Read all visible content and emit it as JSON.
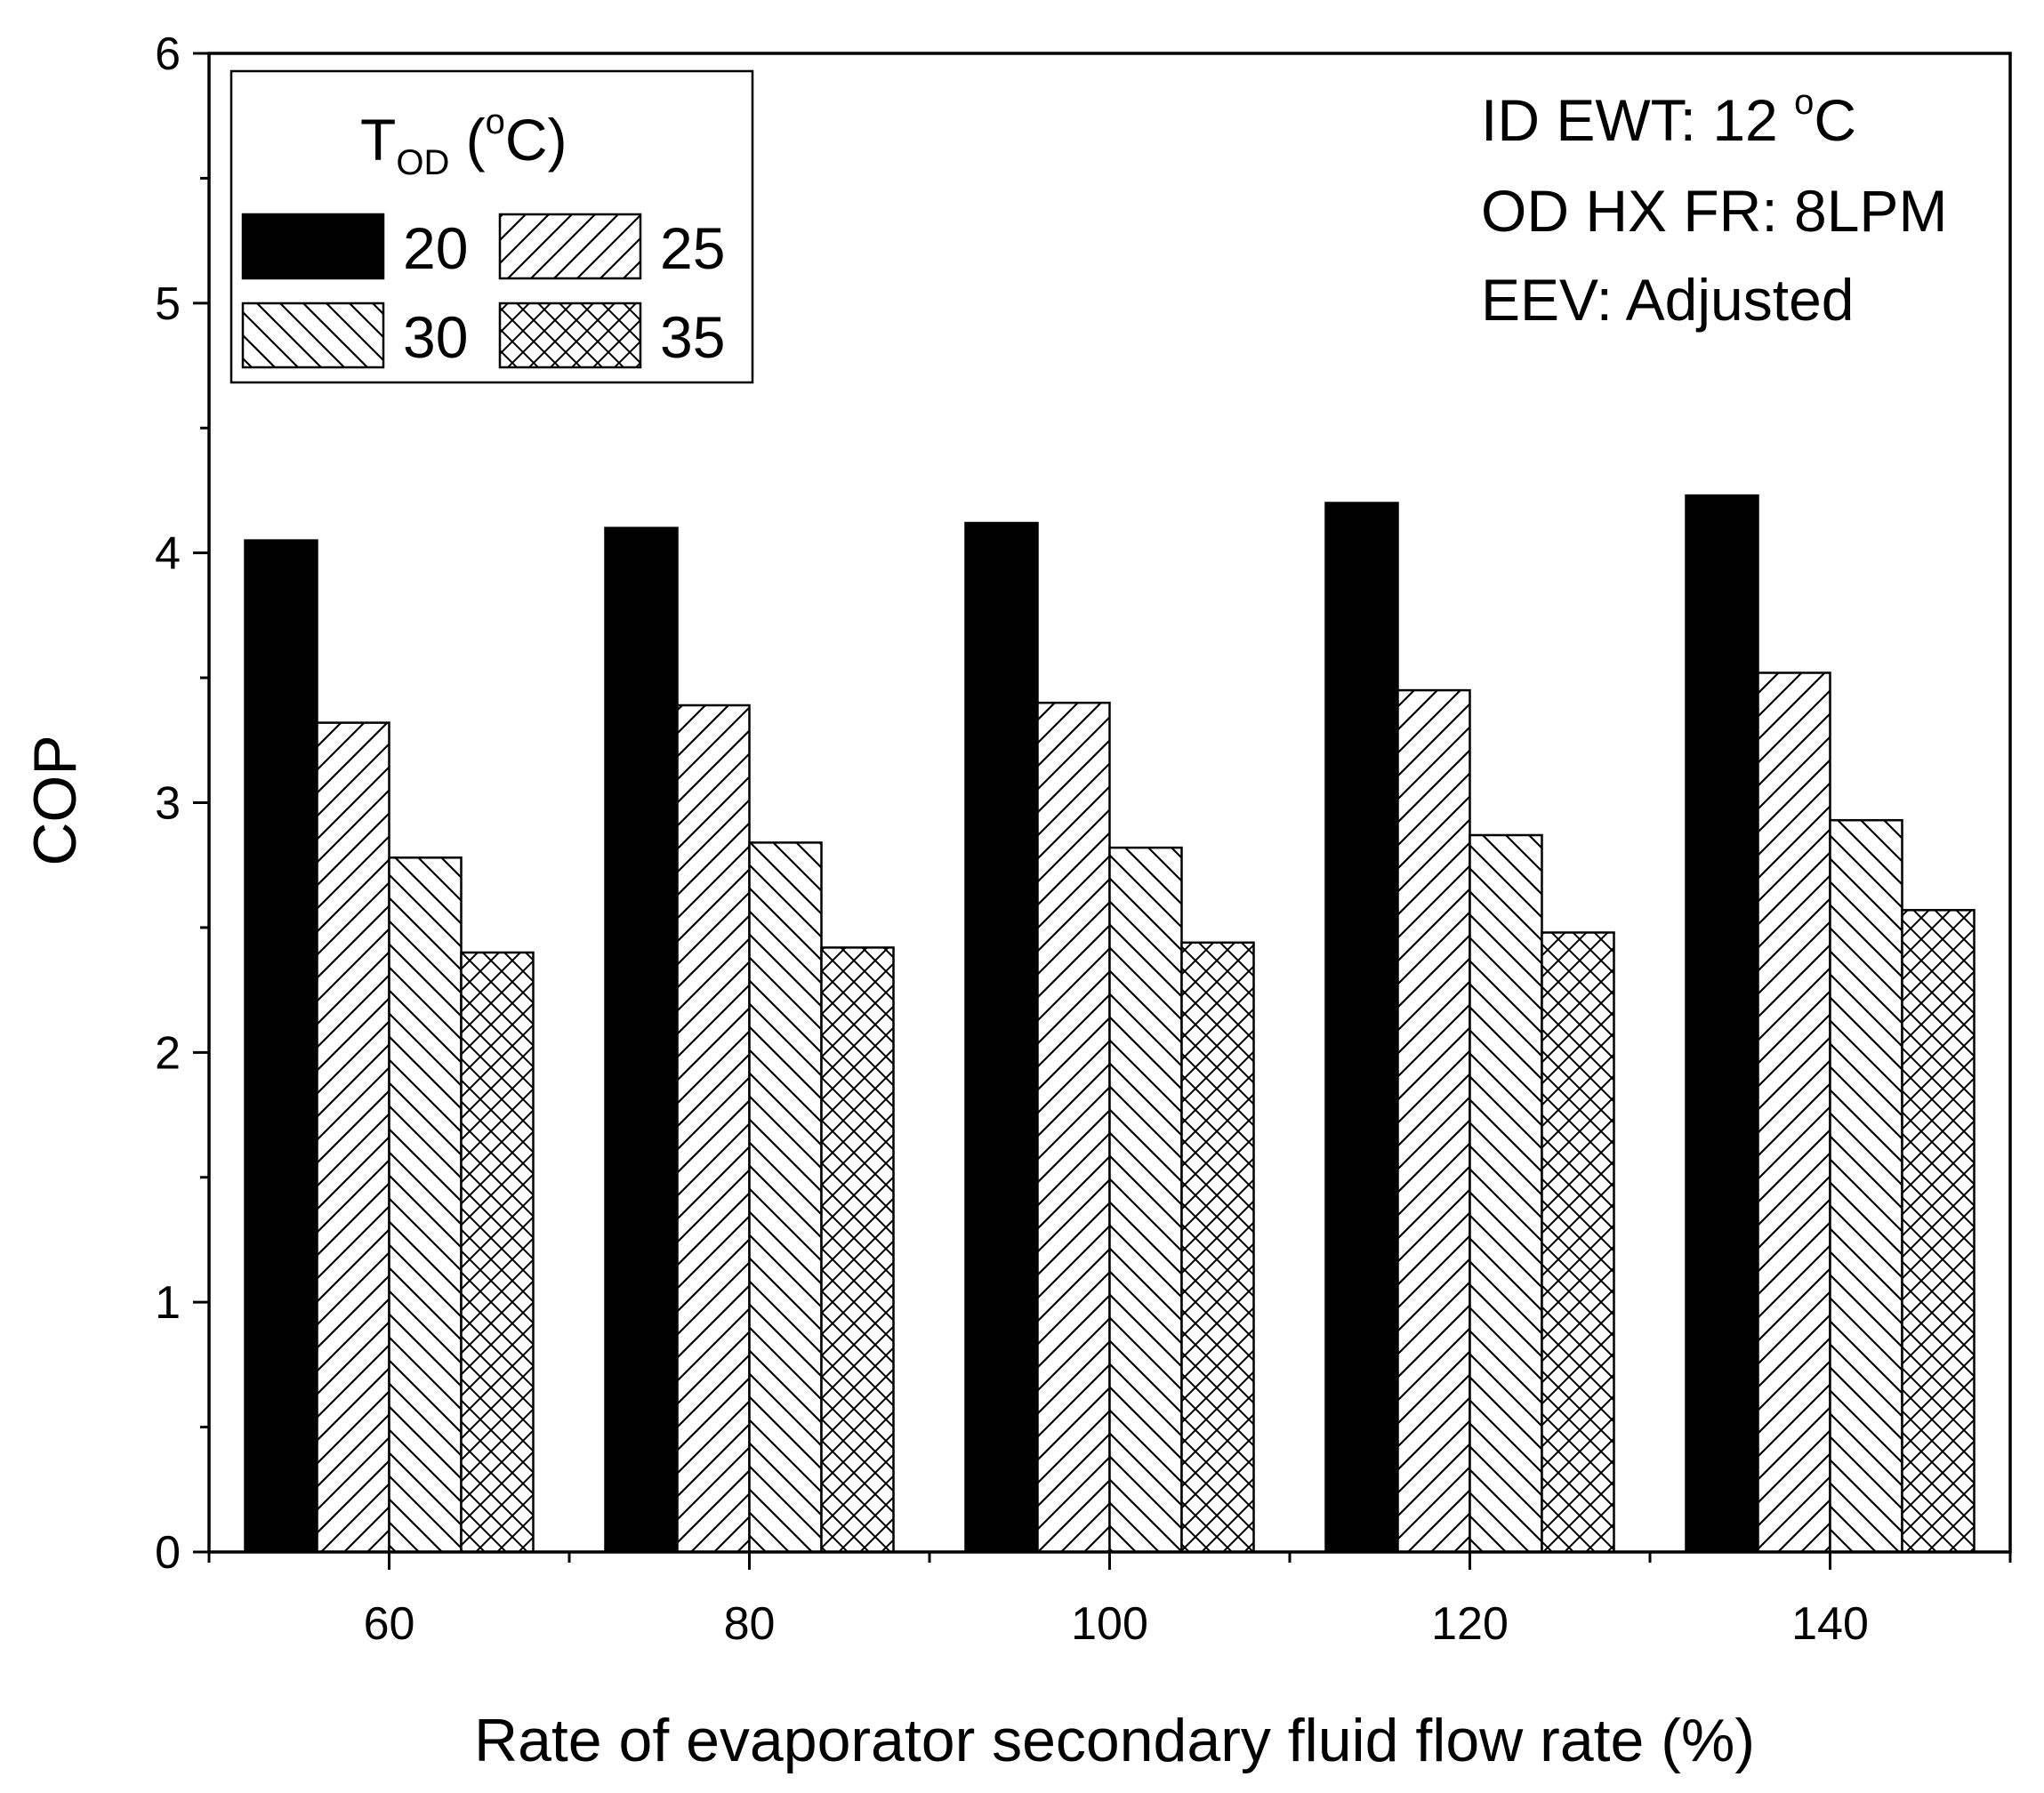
{
  "chart_data": {
    "type": "bar",
    "categories": [
      "60",
      "80",
      "100",
      "120",
      "140"
    ],
    "series": [
      {
        "name": "20",
        "pattern": "solid",
        "values": [
          4.05,
          4.1,
          4.12,
          4.2,
          4.23
        ]
      },
      {
        "name": "25",
        "pattern": "forward-hatch",
        "values": [
          3.32,
          3.39,
          3.4,
          3.45,
          3.52
        ]
      },
      {
        "name": "30",
        "pattern": "back-hatch",
        "values": [
          2.78,
          2.84,
          2.82,
          2.87,
          2.93
        ]
      },
      {
        "name": "35",
        "pattern": "cross-hatch",
        "values": [
          2.4,
          2.42,
          2.44,
          2.48,
          2.57
        ]
      }
    ],
    "title": "",
    "xlabel": "Rate of evaporator secondary fluid flow rate (%)",
    "ylabel": "COP",
    "ylim": [
      0,
      6
    ],
    "yticks": [
      "0",
      "1",
      "2",
      "3",
      "4",
      "5",
      "6"
    ],
    "grid": false,
    "legend": {
      "title_main": "T",
      "title_sub": "OD",
      "title_open": " (",
      "title_sup": "o",
      "title_close": "C)",
      "placement": "top-left"
    },
    "annotations": {
      "line1_main": "ID EWT: 12 ",
      "line1_sup": "o",
      "line1_end": "C",
      "line2": "OD HX FR: 8LPM",
      "line3": "EEV: Adjusted"
    }
  },
  "colors": {
    "bar_stroke": "#000000",
    "bar_fill_solid": "#000000",
    "bar_fill_hatch": "#ffffff",
    "axis": "#000000"
  }
}
